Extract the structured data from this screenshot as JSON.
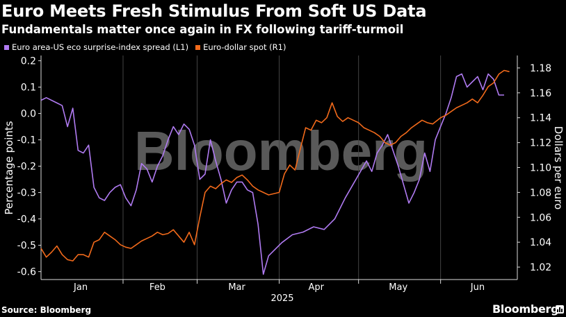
{
  "title": "Euro Meets Fresh Stimulus From Soft US Data",
  "subtitle": "Fundamentals matter once again in FX following tariff-turmoil",
  "source": "Source: Bloomberg",
  "brand": "Bloomberg",
  "watermark": "Bloomberg",
  "icons": {
    "brand": "bar-chart-icon"
  },
  "chart_data": {
    "type": "line",
    "x_labels": [
      "Jan",
      "Feb",
      "Mar",
      "Apr",
      "May",
      "Jun"
    ],
    "x_year_label": "2025",
    "x_range": [
      "2025-01-01",
      "2025-06-30"
    ],
    "y_left": {
      "label": "Percentage points",
      "ticks": [
        "0.2",
        "0.1",
        "0.0",
        "-0.1",
        "-0.2",
        "-0.3",
        "-0.4",
        "-0.5",
        "-0.6"
      ],
      "range": [
        -0.63,
        0.22
      ]
    },
    "y_right": {
      "label": "Dollars per euro",
      "ticks": [
        "1.18",
        "1.16",
        "1.14",
        "1.12",
        "1.10",
        "1.08",
        "1.06",
        "1.04",
        "1.02"
      ],
      "range": [
        1.01,
        1.19
      ]
    },
    "grid": "vertical month separators",
    "legend_position": "top-left",
    "series": [
      {
        "name": "Euro area-US eco surprise-index spread (L1)",
        "axis": "left",
        "color": "#b07bf2",
        "values": [
          [
            "2025-01-01",
            0.05
          ],
          [
            "2025-01-03",
            0.06
          ],
          [
            "2025-01-05",
            0.05
          ],
          [
            "2025-01-07",
            0.04
          ],
          [
            "2025-01-09",
            0.03
          ],
          [
            "2025-01-11",
            -0.05
          ],
          [
            "2025-01-13",
            0.02
          ],
          [
            "2025-01-15",
            -0.14
          ],
          [
            "2025-01-17",
            -0.15
          ],
          [
            "2025-01-19",
            -0.12
          ],
          [
            "2025-01-21",
            -0.28
          ],
          [
            "2025-01-23",
            -0.32
          ],
          [
            "2025-01-25",
            -0.33
          ],
          [
            "2025-01-27",
            -0.3
          ],
          [
            "2025-01-29",
            -0.28
          ],
          [
            "2025-01-31",
            -0.27
          ],
          [
            "2025-02-02",
            -0.32
          ],
          [
            "2025-02-04",
            -0.35
          ],
          [
            "2025-02-06",
            -0.29
          ],
          [
            "2025-02-08",
            -0.19
          ],
          [
            "2025-02-10",
            -0.21
          ],
          [
            "2025-02-12",
            -0.26
          ],
          [
            "2025-02-14",
            -0.2
          ],
          [
            "2025-02-16",
            -0.16
          ],
          [
            "2025-02-18",
            -0.1
          ],
          [
            "2025-02-20",
            -0.05
          ],
          [
            "2025-02-22",
            -0.08
          ],
          [
            "2025-02-24",
            -0.04
          ],
          [
            "2025-02-26",
            -0.06
          ],
          [
            "2025-02-28",
            -0.12
          ],
          [
            "2025-03-02",
            -0.25
          ],
          [
            "2025-03-04",
            -0.23
          ],
          [
            "2025-03-06",
            -0.1
          ],
          [
            "2025-03-08",
            -0.18
          ],
          [
            "2025-03-10",
            -0.25
          ],
          [
            "2025-03-12",
            -0.34
          ],
          [
            "2025-03-14",
            -0.29
          ],
          [
            "2025-03-16",
            -0.26
          ],
          [
            "2025-03-18",
            -0.26
          ],
          [
            "2025-03-20",
            -0.29
          ],
          [
            "2025-03-22",
            -0.3
          ],
          [
            "2025-03-24",
            -0.42
          ],
          [
            "2025-03-26",
            -0.61
          ],
          [
            "2025-03-28",
            -0.54
          ],
          [
            "2025-04-02",
            -0.49
          ],
          [
            "2025-04-06",
            -0.46
          ],
          [
            "2025-04-10",
            -0.45
          ],
          [
            "2025-04-14",
            -0.43
          ],
          [
            "2025-04-18",
            -0.44
          ],
          [
            "2025-04-22",
            -0.4
          ],
          [
            "2025-04-26",
            -0.32
          ],
          [
            "2025-04-30",
            -0.25
          ],
          [
            "2025-05-04",
            -0.18
          ],
          [
            "2025-05-06",
            -0.22
          ],
          [
            "2025-05-08",
            -0.15
          ],
          [
            "2025-05-10",
            -0.12
          ],
          [
            "2025-05-12",
            -0.08
          ],
          [
            "2025-05-14",
            -0.14
          ],
          [
            "2025-05-16",
            -0.2
          ],
          [
            "2025-05-18",
            -0.27
          ],
          [
            "2025-05-20",
            -0.34
          ],
          [
            "2025-05-22",
            -0.3
          ],
          [
            "2025-05-24",
            -0.25
          ],
          [
            "2025-05-26",
            -0.15
          ],
          [
            "2025-05-28",
            -0.22
          ],
          [
            "2025-05-30",
            -0.1
          ],
          [
            "2025-06-01",
            -0.05
          ],
          [
            "2025-06-03",
            0.0
          ],
          [
            "2025-06-05",
            0.06
          ],
          [
            "2025-06-07",
            0.14
          ],
          [
            "2025-06-09",
            0.15
          ],
          [
            "2025-06-11",
            0.1
          ],
          [
            "2025-06-13",
            0.12
          ],
          [
            "2025-06-15",
            0.14
          ],
          [
            "2025-06-17",
            0.09
          ],
          [
            "2025-06-19",
            0.15
          ],
          [
            "2025-06-21",
            0.13
          ],
          [
            "2025-06-23",
            0.07
          ],
          [
            "2025-06-25",
            0.07
          ]
        ]
      },
      {
        "name": "Euro-dollar spot (R1)",
        "axis": "right",
        "color": "#f26a1b",
        "values": [
          [
            "2025-01-01",
            1.035
          ],
          [
            "2025-01-03",
            1.028
          ],
          [
            "2025-01-05",
            1.032
          ],
          [
            "2025-01-07",
            1.037
          ],
          [
            "2025-01-09",
            1.03
          ],
          [
            "2025-01-11",
            1.026
          ],
          [
            "2025-01-13",
            1.025
          ],
          [
            "2025-01-15",
            1.03
          ],
          [
            "2025-01-17",
            1.03
          ],
          [
            "2025-01-19",
            1.028
          ],
          [
            "2025-01-21",
            1.04
          ],
          [
            "2025-01-23",
            1.042
          ],
          [
            "2025-01-25",
            1.048
          ],
          [
            "2025-01-27",
            1.045
          ],
          [
            "2025-01-29",
            1.042
          ],
          [
            "2025-01-31",
            1.038
          ],
          [
            "2025-02-02",
            1.036
          ],
          [
            "2025-02-04",
            1.035
          ],
          [
            "2025-02-06",
            1.038
          ],
          [
            "2025-02-08",
            1.041
          ],
          [
            "2025-02-10",
            1.043
          ],
          [
            "2025-02-12",
            1.045
          ],
          [
            "2025-02-14",
            1.048
          ],
          [
            "2025-02-16",
            1.046
          ],
          [
            "2025-02-18",
            1.047
          ],
          [
            "2025-02-20",
            1.05
          ],
          [
            "2025-02-22",
            1.045
          ],
          [
            "2025-02-24",
            1.04
          ],
          [
            "2025-02-26",
            1.048
          ],
          [
            "2025-02-28",
            1.038
          ],
          [
            "2025-03-02",
            1.06
          ],
          [
            "2025-03-04",
            1.08
          ],
          [
            "2025-03-06",
            1.085
          ],
          [
            "2025-03-08",
            1.083
          ],
          [
            "2025-03-10",
            1.087
          ],
          [
            "2025-03-12",
            1.09
          ],
          [
            "2025-03-14",
            1.088
          ],
          [
            "2025-03-16",
            1.092
          ],
          [
            "2025-03-18",
            1.094
          ],
          [
            "2025-03-20",
            1.09
          ],
          [
            "2025-03-22",
            1.085
          ],
          [
            "2025-03-24",
            1.082
          ],
          [
            "2025-03-26",
            1.08
          ],
          [
            "2025-03-28",
            1.078
          ],
          [
            "2025-04-01",
            1.08
          ],
          [
            "2025-04-03",
            1.095
          ],
          [
            "2025-04-05",
            1.102
          ],
          [
            "2025-04-07",
            1.098
          ],
          [
            "2025-04-09",
            1.115
          ],
          [
            "2025-04-11",
            1.132
          ],
          [
            "2025-04-13",
            1.13
          ],
          [
            "2025-04-15",
            1.138
          ],
          [
            "2025-04-17",
            1.136
          ],
          [
            "2025-04-19",
            1.14
          ],
          [
            "2025-04-21",
            1.152
          ],
          [
            "2025-04-23",
            1.141
          ],
          [
            "2025-04-25",
            1.137
          ],
          [
            "2025-04-27",
            1.14
          ],
          [
            "2025-04-29",
            1.138
          ],
          [
            "2025-05-01",
            1.136
          ],
          [
            "2025-05-03",
            1.132
          ],
          [
            "2025-05-05",
            1.13
          ],
          [
            "2025-05-07",
            1.128
          ],
          [
            "2025-05-09",
            1.125
          ],
          [
            "2025-05-11",
            1.12
          ],
          [
            "2025-05-13",
            1.118
          ],
          [
            "2025-05-15",
            1.12
          ],
          [
            "2025-05-17",
            1.125
          ],
          [
            "2025-05-19",
            1.128
          ],
          [
            "2025-05-21",
            1.132
          ],
          [
            "2025-05-23",
            1.135
          ],
          [
            "2025-05-25",
            1.138
          ],
          [
            "2025-05-27",
            1.136
          ],
          [
            "2025-05-29",
            1.135
          ],
          [
            "2025-06-01",
            1.14
          ],
          [
            "2025-06-03",
            1.142
          ],
          [
            "2025-06-05",
            1.145
          ],
          [
            "2025-06-07",
            1.148
          ],
          [
            "2025-06-09",
            1.15
          ],
          [
            "2025-06-11",
            1.152
          ],
          [
            "2025-06-13",
            1.155
          ],
          [
            "2025-06-15",
            1.152
          ],
          [
            "2025-06-17",
            1.158
          ],
          [
            "2025-06-19",
            1.165
          ],
          [
            "2025-06-21",
            1.168
          ],
          [
            "2025-06-23",
            1.175
          ],
          [
            "2025-06-25",
            1.178
          ],
          [
            "2025-06-27",
            1.177
          ]
        ]
      }
    ]
  }
}
